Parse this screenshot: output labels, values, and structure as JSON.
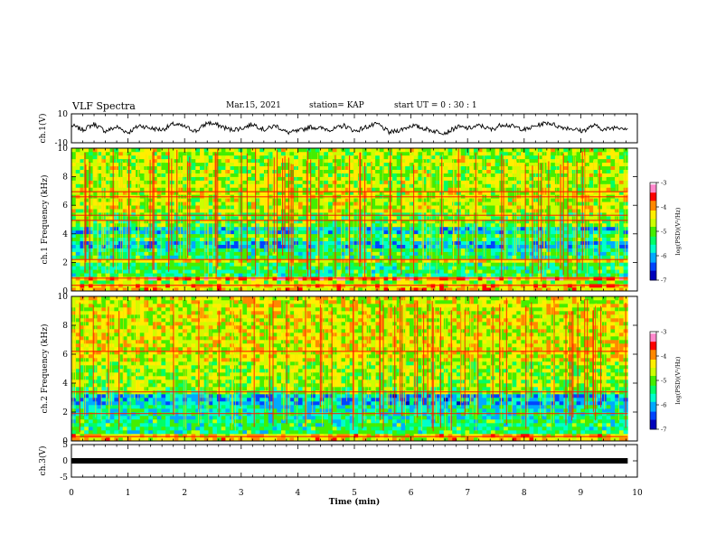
{
  "header": {
    "title": "VLF Spectra",
    "date": "Mar.15, 2021",
    "station": "station= KAP",
    "start": "start UT =  0 : 30 : 1"
  },
  "chart_data": [
    {
      "type": "line",
      "panel": "ch1-waveform",
      "ylabel": "ch.1(V)",
      "ylim": [
        -10,
        10
      ],
      "yticks": [
        "10",
        "-10"
      ],
      "xlim": [
        0,
        10
      ],
      "x_end": 9.83,
      "series": [
        {
          "values": [
            2,
            -1,
            3,
            -2,
            1,
            -3,
            2,
            0,
            -1,
            3,
            1,
            -2,
            4,
            2,
            -1,
            0,
            3,
            -1,
            2,
            -3,
            -2,
            1,
            0,
            -1,
            2,
            -2,
            1,
            3,
            -3,
            -1,
            2,
            0,
            -2,
            -3,
            1,
            0,
            2,
            -1,
            3,
            1,
            -1,
            2,
            4,
            1,
            0,
            -2,
            2,
            -1,
            1,
            0
          ]
        }
      ],
      "color": "#000000"
    },
    {
      "type": "heatmap",
      "panel": "ch1-spectrogram",
      "ylabel": "ch.1 Frequency  (kHz)",
      "ylim": [
        0,
        10
      ],
      "yticks": [
        "0",
        "2",
        "4",
        "6",
        "8",
        "10"
      ],
      "xlim": [
        0,
        10
      ],
      "x_end": 9.83,
      "colorbar": {
        "label": "log(PSD)(V²/Hz)",
        "range": [
          -7,
          -3
        ],
        "ticks": [
          "-3",
          "-4",
          "-5",
          "-6",
          "-7"
        ],
        "colors": [
          "#0000bb",
          "#0044ff",
          "#00aaff",
          "#00ffcc",
          "#00ff66",
          "#44ee00",
          "#ccff00",
          "#ffee00",
          "#ff8800",
          "#ff0000",
          "#ff88cc",
          "#ffffff"
        ]
      },
      "bands": [
        {
          "from": 0.0,
          "to": 0.4,
          "level": -4.2
        },
        {
          "from": 0.4,
          "to": 0.8,
          "level": -4.8
        },
        {
          "from": 0.8,
          "to": 1.0,
          "level": -3.8
        },
        {
          "from": 1.0,
          "to": 2.0,
          "level": -5.3
        },
        {
          "from": 2.0,
          "to": 2.3,
          "level": -4.4
        },
        {
          "from": 2.3,
          "to": 2.9,
          "level": -5.4
        },
        {
          "from": 2.9,
          "to": 3.4,
          "level": -5.9
        },
        {
          "from": 3.4,
          "to": 3.9,
          "level": -5.2
        },
        {
          "from": 3.9,
          "to": 4.6,
          "level": -5.8
        },
        {
          "from": 4.6,
          "to": 5.4,
          "level": -5.0
        },
        {
          "from": 5.4,
          "to": 7.2,
          "level": -4.6
        },
        {
          "from": 7.2,
          "to": 10.0,
          "level": -4.7
        }
      ],
      "lines_khz": [
        0.4,
        0.9,
        2.2,
        4.95,
        5.3,
        6.6,
        6.95
      ]
    },
    {
      "type": "heatmap",
      "panel": "ch2-spectrogram",
      "ylabel": "ch.2 Frequency  (kHz)",
      "ylim": [
        0,
        10
      ],
      "yticks": [
        "0",
        "2",
        "4",
        "6",
        "8",
        "10"
      ],
      "xlim": [
        0,
        10
      ],
      "x_end": 9.83,
      "colorbar": {
        "label": "log(PSD)(V²/Hz)",
        "range": [
          -7,
          -3
        ],
        "ticks": [
          "-3",
          "-4",
          "-5",
          "-6",
          "-7"
        ],
        "colors": [
          "#0000bb",
          "#0044ff",
          "#00aaff",
          "#00ffcc",
          "#00ff66",
          "#44ee00",
          "#ccff00",
          "#ffee00",
          "#ff8800",
          "#ff0000",
          "#ff88cc",
          "#ffffff"
        ]
      },
      "bands": [
        {
          "from": 0.0,
          "to": 0.4,
          "level": -4.3
        },
        {
          "from": 0.4,
          "to": 1.5,
          "level": -5.4
        },
        {
          "from": 1.5,
          "to": 2.4,
          "level": -5.6
        },
        {
          "from": 2.4,
          "to": 3.2,
          "level": -6.0
        },
        {
          "from": 3.2,
          "to": 3.7,
          "level": -5.0
        },
        {
          "from": 3.7,
          "to": 5.5,
          "level": -4.8
        },
        {
          "from": 5.5,
          "to": 10.0,
          "level": -4.5
        }
      ],
      "lines_khz": [
        0.3,
        1.9,
        3.4,
        6.2
      ]
    },
    {
      "type": "line",
      "panel": "ch3-waveform",
      "ylabel": "ch.3(V)",
      "ylim": [
        -5,
        5
      ],
      "yticks": [
        "5",
        "0",
        "-5"
      ],
      "xlim": [
        0,
        10
      ],
      "xticks": [
        "0",
        "1",
        "2",
        "3",
        "4",
        "5",
        "6",
        "7",
        "8",
        "9",
        "10"
      ],
      "xlabel": "Time  (min)",
      "x_end": 9.83,
      "series": [
        {
          "values": [
            0,
            0
          ]
        }
      ],
      "color": "#000000"
    }
  ]
}
